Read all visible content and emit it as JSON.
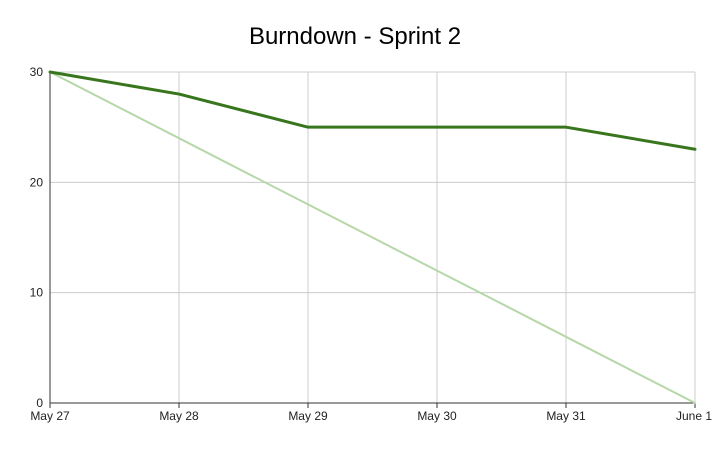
{
  "chart_data": {
    "type": "line",
    "title": "Burndown - Sprint 2",
    "xlabel": "",
    "ylabel": "",
    "categories": [
      "May 27",
      "May 28",
      "May 29",
      "May 30",
      "May 31",
      "June 1"
    ],
    "ylim": [
      0,
      30
    ],
    "yticks": [
      "0",
      "10",
      "20",
      "30"
    ],
    "grid": true,
    "legend": "none",
    "series": [
      {
        "values": [
          30,
          28,
          25,
          25,
          25,
          23
        ],
        "color": "#38761d"
      },
      {
        "values": [
          30,
          24,
          18,
          12,
          6,
          0
        ],
        "color": "#b6d7a8"
      }
    ]
  }
}
